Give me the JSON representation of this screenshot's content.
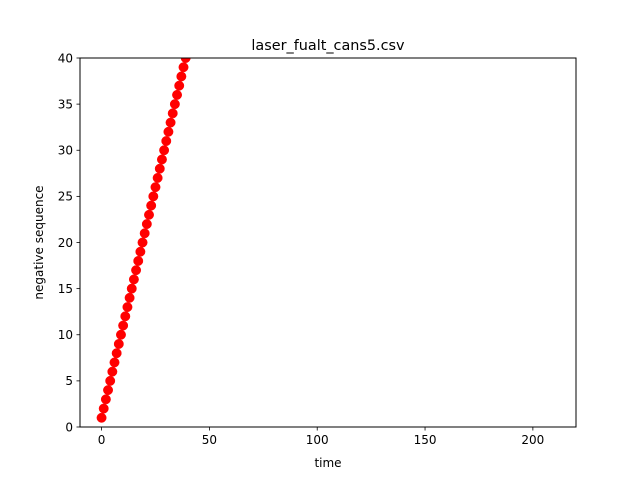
{
  "chart_data": {
    "type": "scatter",
    "title": "laser_fualt_cans5.csv",
    "xlabel": "time",
    "ylabel": "negative sequence",
    "xlim": [
      -10,
      220
    ],
    "ylim": [
      0,
      40
    ],
    "xticks": [
      0,
      50,
      100,
      150,
      200
    ],
    "yticks": [
      0,
      5,
      10,
      15,
      20,
      25,
      30,
      35,
      40
    ],
    "grid": false,
    "marker_color": "#ff0000",
    "series": [
      {
        "x": [
          0,
          1,
          2,
          3,
          4,
          5,
          6,
          7,
          8,
          9,
          10,
          11,
          12,
          13,
          14,
          15,
          16,
          17,
          18,
          19,
          20,
          21,
          22,
          23,
          24,
          25,
          26,
          27,
          28,
          29,
          30,
          31,
          32,
          33,
          34,
          35,
          36,
          37,
          38,
          39
        ],
        "y": [
          1,
          2,
          3,
          4,
          5,
          6,
          7,
          8,
          9,
          10,
          11,
          12,
          13,
          14,
          15,
          16,
          17,
          18,
          19,
          20,
          21,
          22,
          23,
          24,
          25,
          26,
          27,
          28,
          29,
          30,
          31,
          32,
          33,
          34,
          35,
          36,
          37,
          38,
          39,
          40
        ]
      }
    ]
  }
}
